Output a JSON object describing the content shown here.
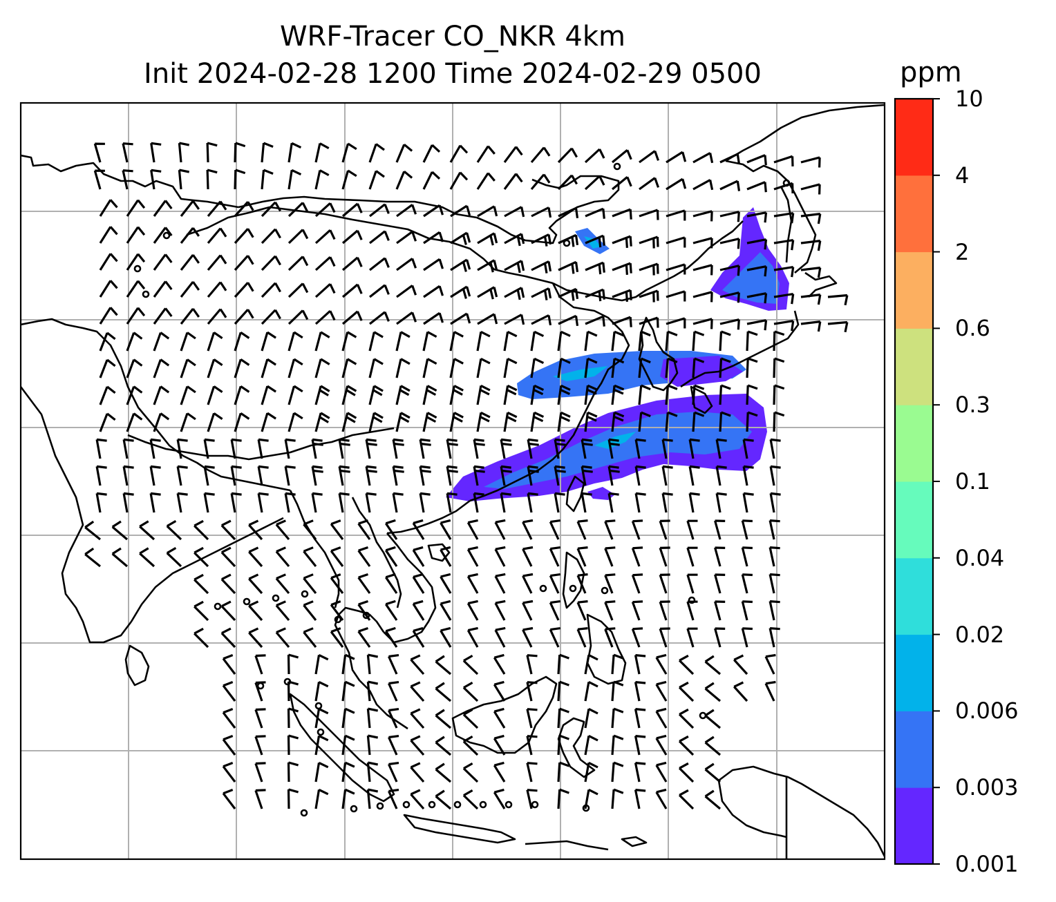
{
  "title": {
    "line1": "WRF-Tracer CO_NKR 4km",
    "line2": "Init 2024-02-28 1200 Time 2024-02-29 0500"
  },
  "colorbar": {
    "unit": "ppm",
    "levels": [
      "0.001",
      "0.003",
      "0.006",
      "0.02",
      "0.04",
      "0.1",
      "0.3",
      "0.6",
      "2",
      "4",
      "10"
    ],
    "colors": [
      "#6427ff",
      "#3574f5",
      "#02b2ea",
      "#2fdedb",
      "#66fbbc",
      "#9afb91",
      "#cde17e",
      "#fcaf60",
      "#ff703c",
      "#ff2b16"
    ]
  },
  "map": {
    "gridline_color": "#b0b0b0",
    "coastline_color": "#000000",
    "field": "CO tracer concentration",
    "wind_symbol": "wind barbs (calm = circle)"
  }
}
